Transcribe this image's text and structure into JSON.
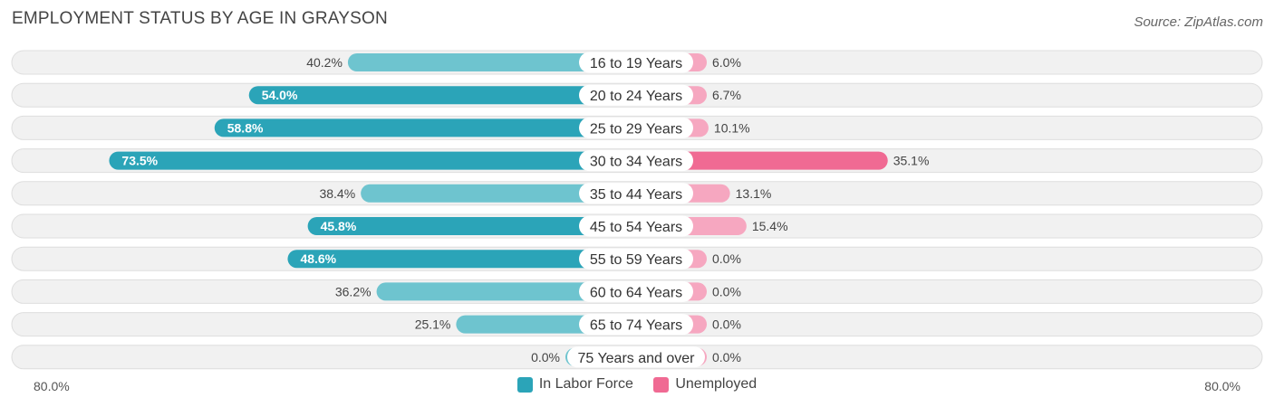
{
  "chart_data": {
    "type": "bar",
    "orientation": "diverging-horizontal",
    "title": "EMPLOYMENT STATUS BY AGE IN GRAYSON",
    "source": "Source: ZipAtlas.com",
    "categories": [
      "16 to 19 Years",
      "20 to 24 Years",
      "25 to 29 Years",
      "30 to 34 Years",
      "35 to 44 Years",
      "45 to 54 Years",
      "55 to 59 Years",
      "60 to 64 Years",
      "65 to 74 Years",
      "75 Years and over"
    ],
    "series": [
      {
        "name": "In Labor Force",
        "values": [
          40.2,
          54.0,
          58.8,
          73.5,
          38.4,
          45.8,
          48.6,
          36.2,
          25.1,
          0.0
        ],
        "labels": [
          "40.2%",
          "54.0%",
          "58.8%",
          "73.5%",
          "38.4%",
          "45.8%",
          "48.6%",
          "36.2%",
          "25.1%",
          "0.0%"
        ]
      },
      {
        "name": "Unemployed",
        "values": [
          6.0,
          6.7,
          10.1,
          35.1,
          13.1,
          15.4,
          0.0,
          0.0,
          0.0,
          0.0
        ],
        "labels": [
          "6.0%",
          "6.7%",
          "10.1%",
          "35.1%",
          "13.1%",
          "15.4%",
          "0.0%",
          "0.0%",
          "0.0%",
          "0.0%"
        ]
      }
    ],
    "axis": {
      "min_label": "80.0%",
      "max_label": "80.0%",
      "max": 80
    },
    "legend_position": "bottom-center"
  },
  "colors": {
    "labor_strong": "#2ba4b8",
    "labor_light": "#6ec4cf",
    "unemp_strong": "#f06a93",
    "unemp_light": "#f6a7c0",
    "row_bg": "#f1f1f1",
    "row_border": "#dedede"
  }
}
